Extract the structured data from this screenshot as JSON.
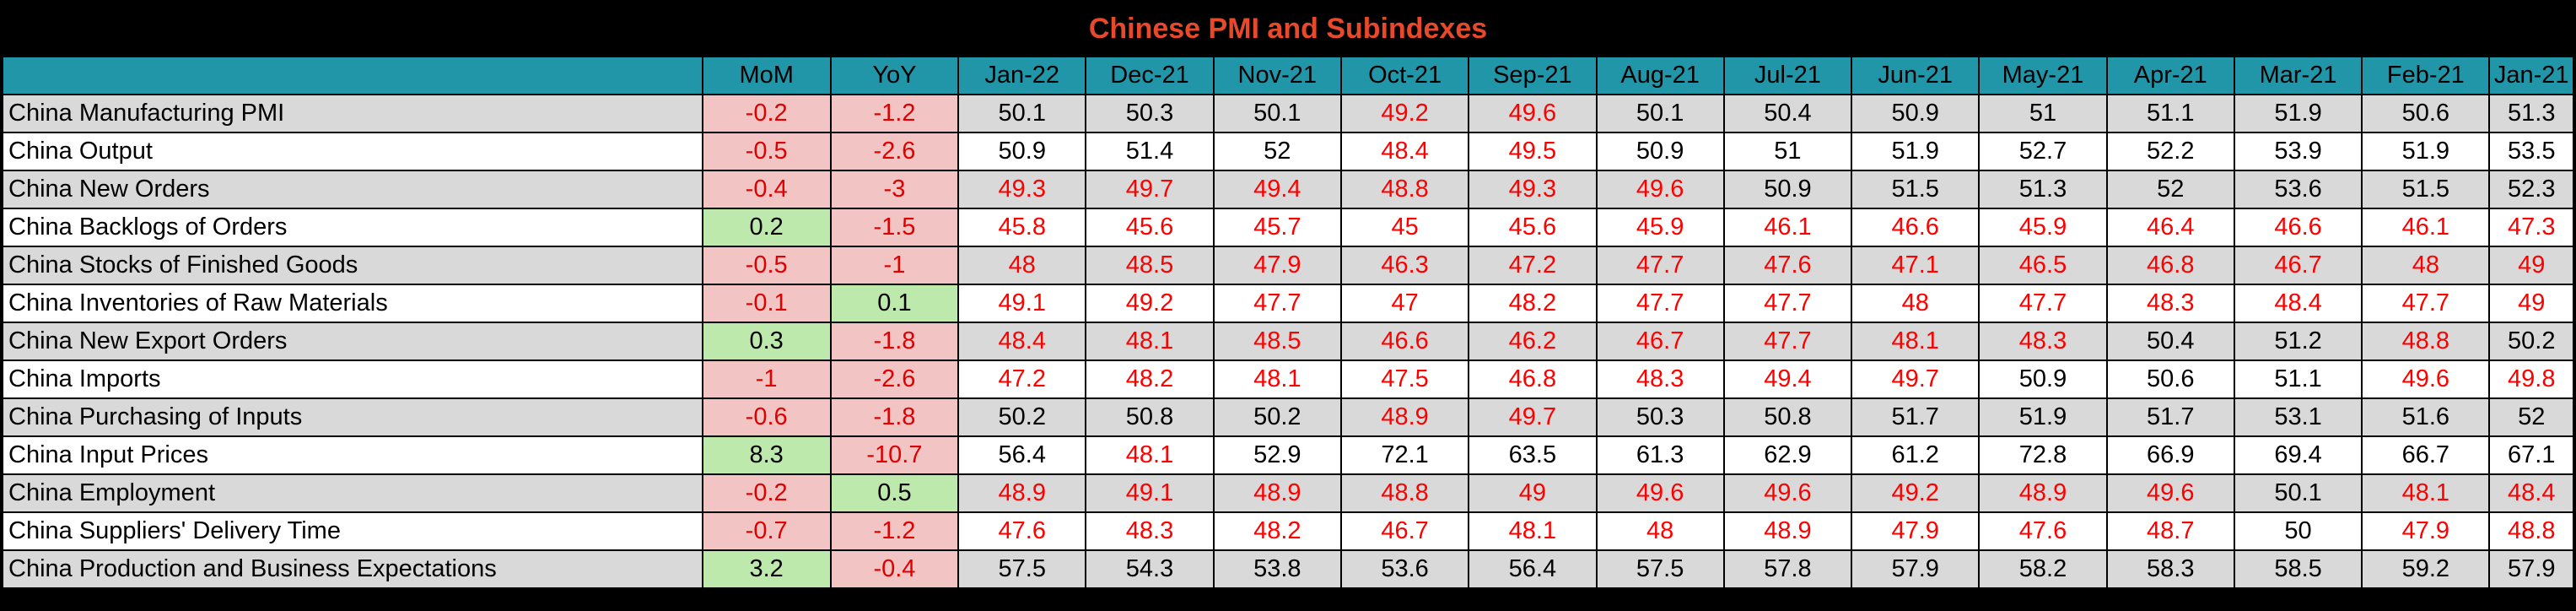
{
  "title": "Chinese PMI and Subindexes",
  "columns": [
    "MoM",
    "YoY",
    "Jan-22",
    "Dec-21",
    "Nov-21",
    "Oct-21",
    "Sep-21",
    "Aug-21",
    "Jul-21",
    "Jun-21",
    "May-21",
    "Apr-21",
    "Mar-21",
    "Feb-21",
    "Jan-21"
  ],
  "colors": {
    "header_bg": "#2196a8",
    "title_text": "#e8492b",
    "negative_bg": "#f2c4c4",
    "positive_bg": "#bde9ad",
    "below_50_text": "#ff0000"
  },
  "chart_data": {
    "type": "table",
    "title": "Chinese PMI and Subindexes",
    "rows": [
      {
        "name": "China Manufacturing PMI",
        "mom": "-0.2",
        "yoy": "-1.2",
        "values": [
          "50.1",
          "50.3",
          "50.1",
          "49.2",
          "49.6",
          "50.1",
          "50.4",
          "50.9",
          "51",
          "51.1",
          "51.9",
          "50.6",
          "51.3"
        ]
      },
      {
        "name": "China Output",
        "mom": "-0.5",
        "yoy": "-2.6",
        "values": [
          "50.9",
          "51.4",
          "52",
          "48.4",
          "49.5",
          "50.9",
          "51",
          "51.9",
          "52.7",
          "52.2",
          "53.9",
          "51.9",
          "53.5"
        ]
      },
      {
        "name": "China New Orders",
        "mom": "-0.4",
        "yoy": "-3",
        "values": [
          "49.3",
          "49.7",
          "49.4",
          "48.8",
          "49.3",
          "49.6",
          "50.9",
          "51.5",
          "51.3",
          "52",
          "53.6",
          "51.5",
          "52.3"
        ]
      },
      {
        "name": "China Backlogs of Orders",
        "mom": "0.2",
        "yoy": "-1.5",
        "values": [
          "45.8",
          "45.6",
          "45.7",
          "45",
          "45.6",
          "45.9",
          "46.1",
          "46.6",
          "45.9",
          "46.4",
          "46.6",
          "46.1",
          "47.3"
        ]
      },
      {
        "name": "China Stocks of Finished Goods",
        "mom": "-0.5",
        "yoy": "-1",
        "values": [
          "48",
          "48.5",
          "47.9",
          "46.3",
          "47.2",
          "47.7",
          "47.6",
          "47.1",
          "46.5",
          "46.8",
          "46.7",
          "48",
          "49"
        ]
      },
      {
        "name": "China Inventories of Raw Materials",
        "mom": "-0.1",
        "yoy": "0.1",
        "values": [
          "49.1",
          "49.2",
          "47.7",
          "47",
          "48.2",
          "47.7",
          "47.7",
          "48",
          "47.7",
          "48.3",
          "48.4",
          "47.7",
          "49"
        ]
      },
      {
        "name": "China New Export Orders",
        "mom": "0.3",
        "yoy": "-1.8",
        "values": [
          "48.4",
          "48.1",
          "48.5",
          "46.6",
          "46.2",
          "46.7",
          "47.7",
          "48.1",
          "48.3",
          "50.4",
          "51.2",
          "48.8",
          "50.2"
        ]
      },
      {
        "name": "China Imports",
        "mom": "-1",
        "yoy": "-2.6",
        "values": [
          "47.2",
          "48.2",
          "48.1",
          "47.5",
          "46.8",
          "48.3",
          "49.4",
          "49.7",
          "50.9",
          "50.6",
          "51.1",
          "49.6",
          "49.8"
        ]
      },
      {
        "name": "China Purchasing of Inputs",
        "mom": "-0.6",
        "yoy": "-1.8",
        "values": [
          "50.2",
          "50.8",
          "50.2",
          "48.9",
          "49.7",
          "50.3",
          "50.8",
          "51.7",
          "51.9",
          "51.7",
          "53.1",
          "51.6",
          "52"
        ]
      },
      {
        "name": "China Input Prices",
        "mom": "8.3",
        "yoy": "-10.7",
        "values": [
          "56.4",
          "48.1",
          "52.9",
          "72.1",
          "63.5",
          "61.3",
          "62.9",
          "61.2",
          "72.8",
          "66.9",
          "69.4",
          "66.7",
          "67.1"
        ]
      },
      {
        "name": "China Employment",
        "mom": "-0.2",
        "yoy": "0.5",
        "values": [
          "48.9",
          "49.1",
          "48.9",
          "48.8",
          "49",
          "49.6",
          "49.6",
          "49.2",
          "48.9",
          "49.6",
          "50.1",
          "48.1",
          "48.4"
        ]
      },
      {
        "name": "China Suppliers' Delivery Time",
        "mom": "-0.7",
        "yoy": "-1.2",
        "values": [
          "47.6",
          "48.3",
          "48.2",
          "46.7",
          "48.1",
          "48",
          "48.9",
          "47.9",
          "47.6",
          "48.7",
          "50",
          "47.9",
          "48.8"
        ]
      },
      {
        "name": "China Production and Business Expectations",
        "mom": "3.2",
        "yoy": "-0.4",
        "values": [
          "57.5",
          "54.3",
          "53.8",
          "53.6",
          "56.4",
          "57.5",
          "57.8",
          "57.9",
          "58.2",
          "58.3",
          "58.5",
          "59.2",
          "57.9"
        ]
      }
    ]
  }
}
